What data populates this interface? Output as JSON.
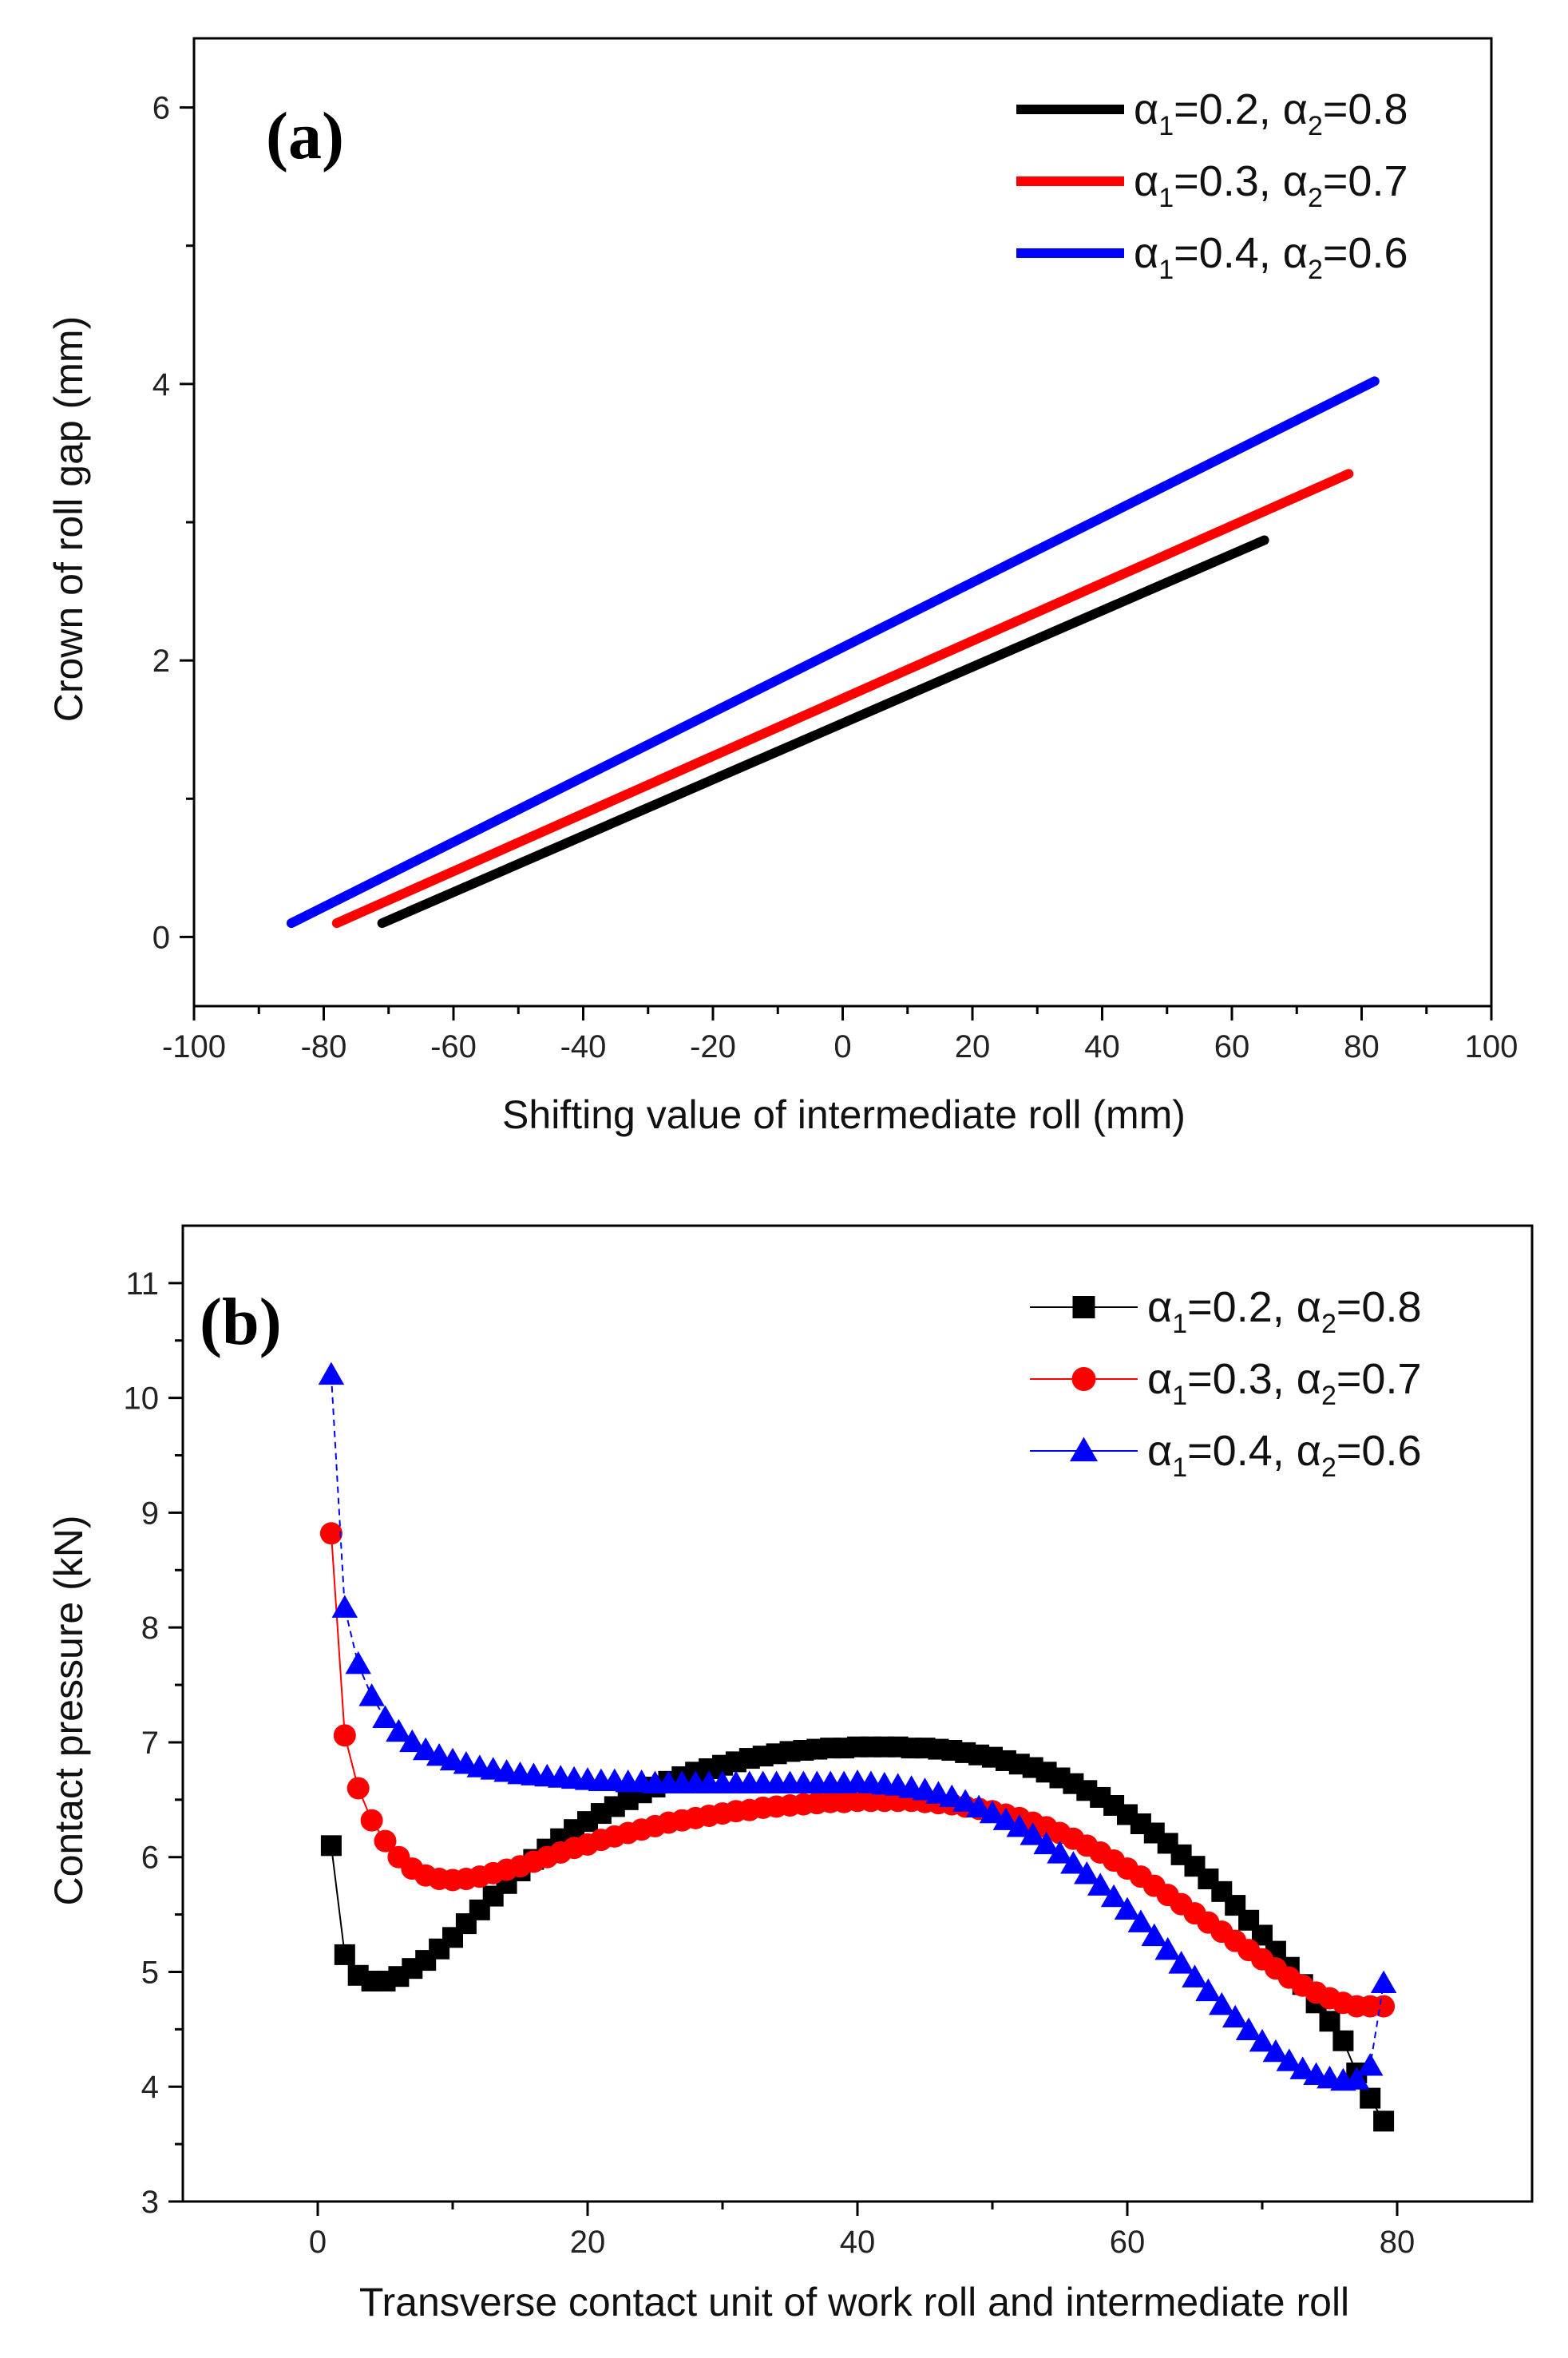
{
  "chart_data": [
    {
      "panel": "(a)",
      "type": "line",
      "title": "",
      "xlabel": "Shifting value of intermediate roll (mm)",
      "ylabel": "Crown of roll gap (mm)",
      "xlim": [
        -100,
        100
      ],
      "ylim": [
        -0.5,
        6.5
      ],
      "xticks": [
        -100,
        -80,
        -60,
        -40,
        -20,
        0,
        20,
        40,
        60,
        80,
        100
      ],
      "yticks": [
        0,
        2,
        4,
        6
      ],
      "grid": false,
      "legend_position": "top-right",
      "series": [
        {
          "name": "α1=0.2, α2=0.8",
          "alpha1": "0.2",
          "alpha2": "0.8",
          "color": "#000000",
          "x": [
            -71,
            65
          ],
          "y": [
            0.1,
            2.87
          ]
        },
        {
          "name": "α1=0.3, α2=0.7",
          "alpha1": "0.3",
          "alpha2": "0.7",
          "color": "#ff0000",
          "x": [
            -78,
            78
          ],
          "y": [
            0.1,
            3.35
          ]
        },
        {
          "name": "α1=0.4, α2=0.6",
          "alpha1": "0.4",
          "alpha2": "0.6",
          "color": "#0000ff",
          "x": [
            -85,
            82
          ],
          "y": [
            0.1,
            4.02
          ]
        }
      ]
    },
    {
      "panel": "(b)",
      "type": "line",
      "title": "",
      "xlabel": "Transverse contact unit of work roll and intermediate roll",
      "ylabel": "Contact pressure (kN)",
      "xlim": [
        -10,
        90
      ],
      "ylim": [
        3,
        11.5
      ],
      "xticks": [
        0,
        20,
        40,
        60,
        80
      ],
      "yticks": [
        3,
        4,
        5,
        6,
        7,
        8,
        9,
        10,
        11
      ],
      "grid": false,
      "legend_position": "top-right",
      "series": [
        {
          "name": "α1=0.2, α2=0.8",
          "alpha1": "0.2",
          "alpha2": "0.8",
          "color": "#000000",
          "marker": "square",
          "x": [
            1,
            2,
            3,
            4,
            5,
            6,
            7,
            8,
            9,
            10,
            11,
            12,
            13,
            14,
            15,
            16,
            17,
            18,
            19,
            20,
            21,
            22,
            23,
            24,
            25,
            26,
            27,
            28,
            29,
            30,
            31,
            32,
            33,
            34,
            35,
            36,
            37,
            38,
            39,
            40,
            41,
            42,
            43,
            44,
            45,
            46,
            47,
            48,
            49,
            50,
            51,
            52,
            53,
            54,
            55,
            56,
            57,
            58,
            59,
            60,
            61,
            62,
            63,
            64,
            65,
            66,
            67,
            68,
            69,
            70,
            71,
            72,
            73,
            74,
            75,
            76,
            77,
            78,
            79
          ],
          "y": [
            6.1,
            5.15,
            4.97,
            4.92,
            4.92,
            4.96,
            5.03,
            5.1,
            5.2,
            5.3,
            5.42,
            5.54,
            5.66,
            5.77,
            5.88,
            5.98,
            6.07,
            6.16,
            6.24,
            6.31,
            6.38,
            6.44,
            6.5,
            6.56,
            6.61,
            6.66,
            6.7,
            6.74,
            6.77,
            6.8,
            6.83,
            6.86,
            6.88,
            6.9,
            6.92,
            6.93,
            6.94,
            6.95,
            6.95,
            6.96,
            6.96,
            6.96,
            6.96,
            6.95,
            6.95,
            6.94,
            6.93,
            6.91,
            6.89,
            6.87,
            6.84,
            6.81,
            6.78,
            6.74,
            6.69,
            6.64,
            6.58,
            6.52,
            6.45,
            6.37,
            6.29,
            6.21,
            6.12,
            6.02,
            5.92,
            5.81,
            5.7,
            5.58,
            5.45,
            5.32,
            5.18,
            5.04,
            4.89,
            4.73,
            4.57,
            4.4,
            4.12,
            3.9,
            3.7
          ]
        },
        {
          "name": "α1=0.3, α2=0.7",
          "alpha1": "0.3",
          "alpha2": "0.7",
          "color": "#ff0000",
          "marker": "circle",
          "x": [
            1,
            2,
            3,
            4,
            5,
            6,
            7,
            8,
            9,
            10,
            11,
            12,
            13,
            14,
            15,
            16,
            17,
            18,
            19,
            20,
            21,
            22,
            23,
            24,
            25,
            26,
            27,
            28,
            29,
            30,
            31,
            32,
            33,
            34,
            35,
            36,
            37,
            38,
            39,
            40,
            41,
            42,
            43,
            44,
            45,
            46,
            47,
            48,
            49,
            50,
            51,
            52,
            53,
            54,
            55,
            56,
            57,
            58,
            59,
            60,
            61,
            62,
            63,
            64,
            65,
            66,
            67,
            68,
            69,
            70,
            71,
            72,
            73,
            74,
            75,
            76,
            77,
            78,
            79
          ],
          "y": [
            8.82,
            7.06,
            6.6,
            6.32,
            6.14,
            6.0,
            5.9,
            5.84,
            5.81,
            5.8,
            5.81,
            5.83,
            5.86,
            5.89,
            5.92,
            5.96,
            6.0,
            6.04,
            6.08,
            6.11,
            6.15,
            6.18,
            6.21,
            6.24,
            6.27,
            6.3,
            6.32,
            6.34,
            6.36,
            6.38,
            6.4,
            6.41,
            6.43,
            6.44,
            6.45,
            6.46,
            6.47,
            6.48,
            6.48,
            6.49,
            6.49,
            6.49,
            6.49,
            6.49,
            6.48,
            6.47,
            6.46,
            6.44,
            6.42,
            6.4,
            6.37,
            6.34,
            6.3,
            6.26,
            6.21,
            6.16,
            6.1,
            6.04,
            5.97,
            5.9,
            5.83,
            5.75,
            5.67,
            5.59,
            5.51,
            5.43,
            5.35,
            5.27,
            5.19,
            5.11,
            5.03,
            4.95,
            4.88,
            4.82,
            4.77,
            4.73,
            4.7,
            4.7,
            4.7
          ]
        },
        {
          "name": "α1=0.4, α2=0.6",
          "alpha1": "0.4",
          "alpha2": "0.6",
          "color": "#0000ff",
          "marker": "triangle",
          "x": [
            1,
            2,
            3,
            4,
            5,
            6,
            7,
            8,
            9,
            10,
            11,
            12,
            13,
            14,
            15,
            16,
            17,
            18,
            19,
            20,
            21,
            22,
            23,
            24,
            25,
            26,
            27,
            28,
            29,
            30,
            31,
            32,
            33,
            34,
            35,
            36,
            37,
            38,
            39,
            40,
            41,
            42,
            43,
            44,
            45,
            46,
            47,
            48,
            49,
            50,
            51,
            52,
            53,
            54,
            55,
            56,
            57,
            58,
            59,
            60,
            61,
            62,
            63,
            64,
            65,
            66,
            67,
            68,
            69,
            70,
            71,
            72,
            73,
            74,
            75,
            76,
            77,
            78,
            79
          ],
          "y": [
            10.2,
            8.17,
            7.68,
            7.4,
            7.21,
            7.09,
            7.0,
            6.93,
            6.88,
            6.84,
            6.81,
            6.78,
            6.76,
            6.74,
            6.72,
            6.71,
            6.7,
            6.69,
            6.68,
            6.67,
            6.66,
            6.66,
            6.65,
            6.65,
            6.64,
            6.64,
            6.64,
            6.64,
            6.64,
            6.64,
            6.64,
            6.64,
            6.64,
            6.64,
            6.64,
            6.64,
            6.64,
            6.64,
            6.64,
            6.65,
            6.64,
            6.63,
            6.62,
            6.6,
            6.58,
            6.55,
            6.52,
            6.48,
            6.43,
            6.38,
            6.32,
            6.26,
            6.19,
            6.11,
            6.03,
            5.94,
            5.85,
            5.75,
            5.65,
            5.54,
            5.43,
            5.31,
            5.19,
            5.07,
            4.95,
            4.83,
            4.71,
            4.6,
            4.49,
            4.39,
            4.3,
            4.22,
            4.15,
            4.1,
            4.07,
            4.05,
            4.06,
            4.18,
            4.9
          ]
        }
      ]
    }
  ]
}
